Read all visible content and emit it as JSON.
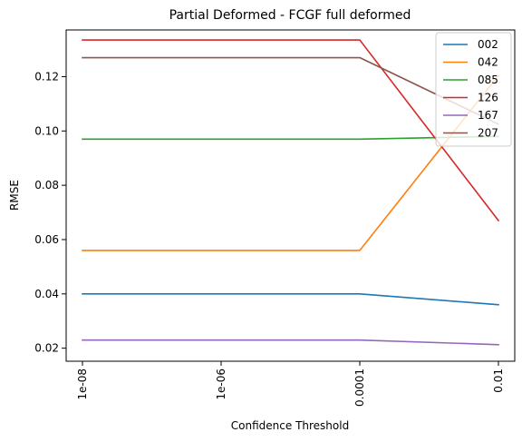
{
  "chart_data": {
    "type": "line",
    "title": "Partial Deformed - FCGF full deformed",
    "xlabel": "Confidence Threshold",
    "ylabel": "RMSE",
    "x": [
      "1e-08",
      "1e-06",
      "0.0001",
      "0.01"
    ],
    "x_scale": "log",
    "y_ticks": [
      "0.02",
      "0.04",
      "0.06",
      "0.08",
      "0.10",
      "0.12"
    ],
    "ylim": [
      0.0152,
      0.1372
    ],
    "grid": false,
    "legend_position": "top-right",
    "series": [
      {
        "name": "002",
        "color": "#1f77b4",
        "x": [
          "1e-08",
          "0.0001",
          "0.01"
        ],
        "values": [
          0.04,
          0.04,
          0.036
        ]
      },
      {
        "name": "042",
        "color": "#ff7f0e",
        "x": [
          "1e-08",
          "0.0001",
          "0.01"
        ],
        "values": [
          0.056,
          0.056,
          0.1205
        ]
      },
      {
        "name": "085",
        "color": "#2ca02c",
        "x": [
          "1e-08",
          "0.0001",
          "0.01"
        ],
        "values": [
          0.097,
          0.097,
          0.098
        ]
      },
      {
        "name": "126",
        "color": "#d62728",
        "x": [
          "1e-08",
          "0.0001",
          "0.01"
        ],
        "values": [
          0.1335,
          0.1335,
          0.067
        ]
      },
      {
        "name": "167",
        "color": "#9467bd",
        "x": [
          "1e-08",
          "0.0001",
          "0.01"
        ],
        "values": [
          0.023,
          0.023,
          0.0213
        ]
      },
      {
        "name": "207",
        "color": "#8c564b",
        "x": [
          "1e-08",
          "0.0001",
          "0.01"
        ],
        "values": [
          0.127,
          0.127,
          0.1025
        ]
      }
    ]
  }
}
